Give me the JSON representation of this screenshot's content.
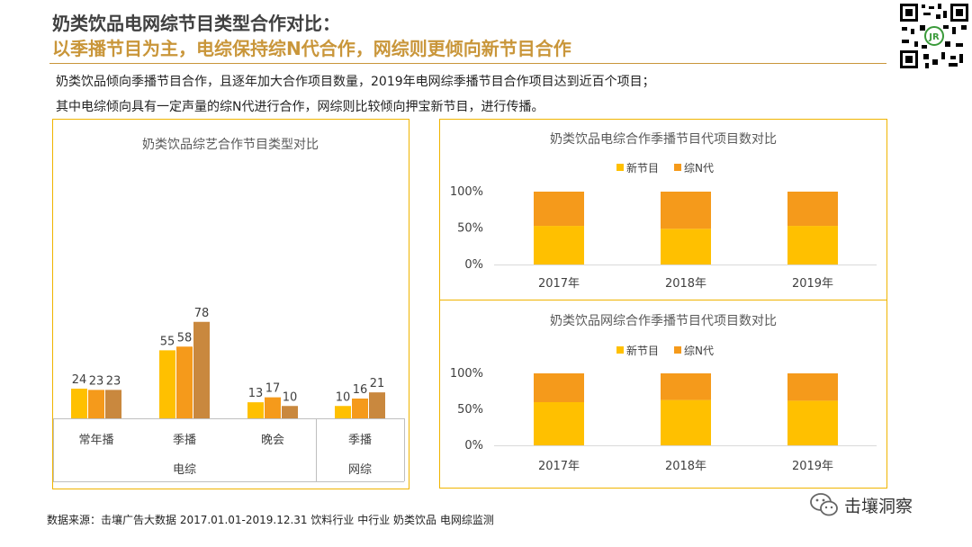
{
  "header": {
    "title": "奶类饮品电网综节目类型合作对比：",
    "subtitle": "以季播节目为主，电综保持综N代合作，网综则更倾向新节目合作"
  },
  "description": {
    "line1": "奶类饮品倾向季播节目合作，且逐年加大合作项目数量，2019年电网综季播节目合作项目达到近百个项目；",
    "line2": "其中电综倾向具有一定声量的综N代进行合作，网综则比较倾向押宝新节目，进行传播。"
  },
  "footer": {
    "source": "数据来源：击壤广告大数据 2017.01.01-2019.12.31  饮料行业 中行业 奶类饮品  电网综监测",
    "wechat": "击壤洞察"
  },
  "colors": {
    "y2017": "#ffc000",
    "y2018": "#f59a1b",
    "y2019": "#c9883e",
    "new_program": "#ffc000",
    "n_generation": "#f59a1b",
    "panel_border": "#f0b400",
    "accent": "#c9963a"
  },
  "chart_data": [
    {
      "type": "bar",
      "title": "奶类饮品综艺合作节目类型对比",
      "categories": [
        "常年播",
        "季播",
        "晚会",
        "季播"
      ],
      "groups": [
        {
          "label": "电综",
          "categories": [
            "常年播",
            "季播",
            "晚会"
          ]
        },
        {
          "label": "网综",
          "categories": [
            "季播"
          ]
        }
      ],
      "series": [
        {
          "values": [
            24,
            55,
            13,
            10
          ]
        },
        {
          "values": [
            23,
            58,
            17,
            16
          ]
        },
        {
          "values": [
            23,
            78,
            10,
            21
          ]
        }
      ],
      "ylim": [
        0,
        80
      ],
      "grid": false,
      "legend": "none"
    },
    {
      "type": "bar",
      "stacked": true,
      "title": "奶类饮品电综合作季播节目代项目数对比",
      "categories": [
        "2017年",
        "2018年",
        "2019年"
      ],
      "series": [
        {
          "name": "新节目",
          "values": [
            0.53,
            0.49,
            0.53
          ]
        },
        {
          "name": "综N代",
          "values": [
            0.47,
            0.51,
            0.47
          ]
        }
      ],
      "yticks": [
        "0%",
        "50%",
        "100%"
      ],
      "ylim": [
        0,
        1
      ],
      "legend": "top"
    },
    {
      "type": "bar",
      "stacked": true,
      "title": "奶类饮品网综合作季播节目代项目数对比",
      "categories": [
        "2017年",
        "2018年",
        "2019年"
      ],
      "series": [
        {
          "name": "新节目",
          "values": [
            0.6,
            0.63,
            0.62
          ]
        },
        {
          "name": "综N代",
          "values": [
            0.4,
            0.37,
            0.38
          ]
        }
      ],
      "yticks": [
        "0%",
        "50%",
        "100%"
      ],
      "ylim": [
        0,
        1
      ],
      "legend": "top"
    }
  ]
}
